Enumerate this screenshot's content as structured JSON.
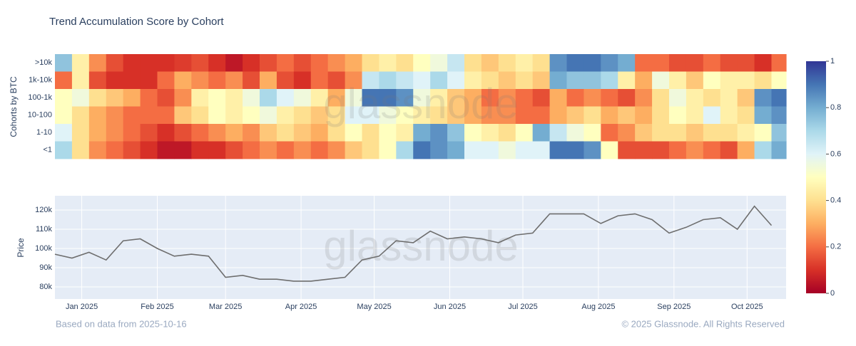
{
  "chart_data": [
    {
      "type": "heatmap",
      "title": "Trend Accumulation Score by Cohort",
      "ylabel": "Cohorts by BTC",
      "watermark": "glassnode",
      "rows": [
        ">10k",
        "1k-10k",
        "100-1k",
        "10-100",
        "1-10",
        "<1"
      ],
      "x": [
        "2024-12-21",
        "2024-12-28",
        "2025-01-04",
        "2025-01-11",
        "2025-01-18",
        "2025-01-25",
        "2025-02-01",
        "2025-02-08",
        "2025-02-15",
        "2025-02-22",
        "2025-03-01",
        "2025-03-08",
        "2025-03-15",
        "2025-03-22",
        "2025-03-29",
        "2025-04-05",
        "2025-04-12",
        "2025-04-19",
        "2025-04-26",
        "2025-05-03",
        "2025-05-10",
        "2025-05-17",
        "2025-05-24",
        "2025-05-31",
        "2025-06-07",
        "2025-06-14",
        "2025-06-21",
        "2025-06-28",
        "2025-07-05",
        "2025-07-12",
        "2025-07-19",
        "2025-07-26",
        "2025-08-02",
        "2025-08-09",
        "2025-08-16",
        "2025-08-23",
        "2025-08-30",
        "2025-09-06",
        "2025-09-13",
        "2025-09-20",
        "2025-09-27",
        "2025-10-04",
        "2025-10-11"
      ],
      "xlim": [
        "2024-12-21",
        "2025-10-17"
      ],
      "z": [
        [
          0.75,
          0.45,
          0.25,
          0.15,
          0.1,
          0.1,
          0.1,
          0.12,
          0.15,
          0.1,
          0.05,
          0.1,
          0.15,
          0.2,
          0.15,
          0.2,
          0.25,
          0.3,
          0.4,
          0.45,
          0.4,
          0.5,
          0.55,
          0.65,
          0.4,
          0.35,
          0.4,
          0.45,
          0.4,
          0.85,
          0.9,
          0.9,
          0.85,
          0.8,
          0.2,
          0.2,
          0.15,
          0.15,
          0.2,
          0.15,
          0.15,
          0.1,
          0.2
        ],
        [
          0.2,
          0.45,
          0.15,
          0.1,
          0.1,
          0.1,
          0.2,
          0.3,
          0.25,
          0.2,
          0.25,
          0.15,
          0.3,
          0.15,
          0.1,
          0.2,
          0.15,
          0.25,
          0.65,
          0.7,
          0.65,
          0.6,
          0.7,
          0.6,
          0.45,
          0.4,
          0.35,
          0.4,
          0.35,
          0.8,
          0.75,
          0.75,
          0.7,
          0.45,
          0.3,
          0.55,
          0.45,
          0.35,
          0.5,
          0.45,
          0.45,
          0.4,
          0.5
        ],
        [
          0.5,
          0.55,
          0.4,
          0.35,
          0.3,
          0.2,
          0.15,
          0.25,
          0.45,
          0.5,
          0.45,
          0.55,
          0.7,
          0.6,
          0.55,
          0.45,
          0.3,
          0.55,
          0.9,
          0.9,
          0.85,
          0.55,
          0.45,
          0.35,
          0.3,
          0.2,
          0.25,
          0.2,
          0.15,
          0.3,
          0.2,
          0.25,
          0.2,
          0.15,
          0.25,
          0.4,
          0.55,
          0.45,
          0.4,
          0.45,
          0.35,
          0.85,
          0.9
        ],
        [
          0.5,
          0.4,
          0.3,
          0.25,
          0.2,
          0.2,
          0.2,
          0.35,
          0.4,
          0.5,
          0.45,
          0.5,
          0.55,
          0.45,
          0.4,
          0.35,
          0.4,
          0.6,
          0.6,
          0.55,
          0.5,
          0.45,
          0.4,
          0.35,
          0.3,
          0.25,
          0.25,
          0.2,
          0.2,
          0.3,
          0.35,
          0.4,
          0.3,
          0.35,
          0.3,
          0.4,
          0.5,
          0.45,
          0.6,
          0.45,
          0.4,
          0.8,
          0.85
        ],
        [
          0.6,
          0.4,
          0.3,
          0.25,
          0.2,
          0.15,
          0.1,
          0.15,
          0.2,
          0.25,
          0.3,
          0.25,
          0.35,
          0.4,
          0.35,
          0.3,
          0.4,
          0.5,
          0.4,
          0.5,
          0.45,
          0.8,
          0.85,
          0.75,
          0.5,
          0.45,
          0.4,
          0.5,
          0.8,
          0.65,
          0.55,
          0.5,
          0.2,
          0.25,
          0.35,
          0.4,
          0.4,
          0.35,
          0.4,
          0.4,
          0.45,
          0.5,
          0.75
        ],
        [
          0.7,
          0.4,
          0.25,
          0.2,
          0.15,
          0.1,
          0.05,
          0.05,
          0.1,
          0.1,
          0.15,
          0.2,
          0.25,
          0.2,
          0.25,
          0.2,
          0.25,
          0.35,
          0.4,
          0.5,
          0.7,
          0.9,
          0.85,
          0.8,
          0.6,
          0.6,
          0.55,
          0.6,
          0.6,
          0.9,
          0.9,
          0.85,
          0.5,
          0.15,
          0.15,
          0.15,
          0.2,
          0.25,
          0.2,
          0.15,
          0.3,
          0.7,
          0.8
        ]
      ],
      "zlim": [
        0,
        1
      ],
      "colorbar_ticks": [
        0,
        0.2,
        0.4,
        0.6,
        0.8,
        1
      ],
      "colorscale": [
        "#a50026",
        "#d73027",
        "#f46d43",
        "#fdae61",
        "#fee090",
        "#ffffbf",
        "#e0f3f8",
        "#abd9e9",
        "#74add1",
        "#4575b4",
        "#313695"
      ]
    },
    {
      "type": "line",
      "ylabel": "Price",
      "watermark": "glassnode",
      "color": "#6e6e6e",
      "grid": true,
      "x": [
        "2024-12-21",
        "2024-12-28",
        "2025-01-04",
        "2025-01-11",
        "2025-01-18",
        "2025-01-25",
        "2025-02-01",
        "2025-02-08",
        "2025-02-15",
        "2025-02-22",
        "2025-03-01",
        "2025-03-08",
        "2025-03-15",
        "2025-03-22",
        "2025-03-29",
        "2025-04-05",
        "2025-04-12",
        "2025-04-19",
        "2025-04-26",
        "2025-05-03",
        "2025-05-10",
        "2025-05-17",
        "2025-05-24",
        "2025-05-31",
        "2025-06-07",
        "2025-06-14",
        "2025-06-21",
        "2025-06-28",
        "2025-07-05",
        "2025-07-12",
        "2025-07-19",
        "2025-07-26",
        "2025-08-02",
        "2025-08-09",
        "2025-08-16",
        "2025-08-23",
        "2025-08-30",
        "2025-09-06",
        "2025-09-13",
        "2025-09-20",
        "2025-09-27",
        "2025-10-04",
        "2025-10-11"
      ],
      "values": [
        97000,
        95000,
        98000,
        94000,
        104000,
        105000,
        100000,
        96000,
        97000,
        96000,
        85000,
        86000,
        84000,
        84000,
        83000,
        83000,
        84000,
        85000,
        94000,
        96000,
        104000,
        103000,
        109000,
        105000,
        106000,
        105000,
        103000,
        107000,
        108000,
        118000,
        118000,
        118000,
        113000,
        117000,
        118000,
        115000,
        108000,
        111000,
        115000,
        116000,
        110000,
        122000,
        112000
      ],
      "xlim": [
        "2024-12-21",
        "2025-10-17"
      ],
      "xticks": [
        {
          "value": "2025-01-01",
          "label": "Jan 2025"
        },
        {
          "value": "2025-02-01",
          "label": "Feb 2025"
        },
        {
          "value": "2025-03-01",
          "label": "Mar 2025"
        },
        {
          "value": "2025-04-01",
          "label": "Apr 2025"
        },
        {
          "value": "2025-05-01",
          "label": "May 2025"
        },
        {
          "value": "2025-06-01",
          "label": "Jun 2025"
        },
        {
          "value": "2025-07-01",
          "label": "Jul 2025"
        },
        {
          "value": "2025-08-01",
          "label": "Aug 2025"
        },
        {
          "value": "2025-09-01",
          "label": "Sep 2025"
        },
        {
          "value": "2025-10-01",
          "label": "Oct 2025"
        }
      ],
      "ylim": [
        73700,
        127400
      ],
      "yticks": [
        {
          "value": 80000,
          "label": "80k"
        },
        {
          "value": 90000,
          "label": "90k"
        },
        {
          "value": 100000,
          "label": "100k"
        },
        {
          "value": 110000,
          "label": "110k"
        },
        {
          "value": 120000,
          "label": "120k"
        }
      ]
    }
  ],
  "footer": {
    "note": "Based on data from 2025-10-16",
    "copyright": "© 2025 Glassnode. All Rights Reserved"
  }
}
